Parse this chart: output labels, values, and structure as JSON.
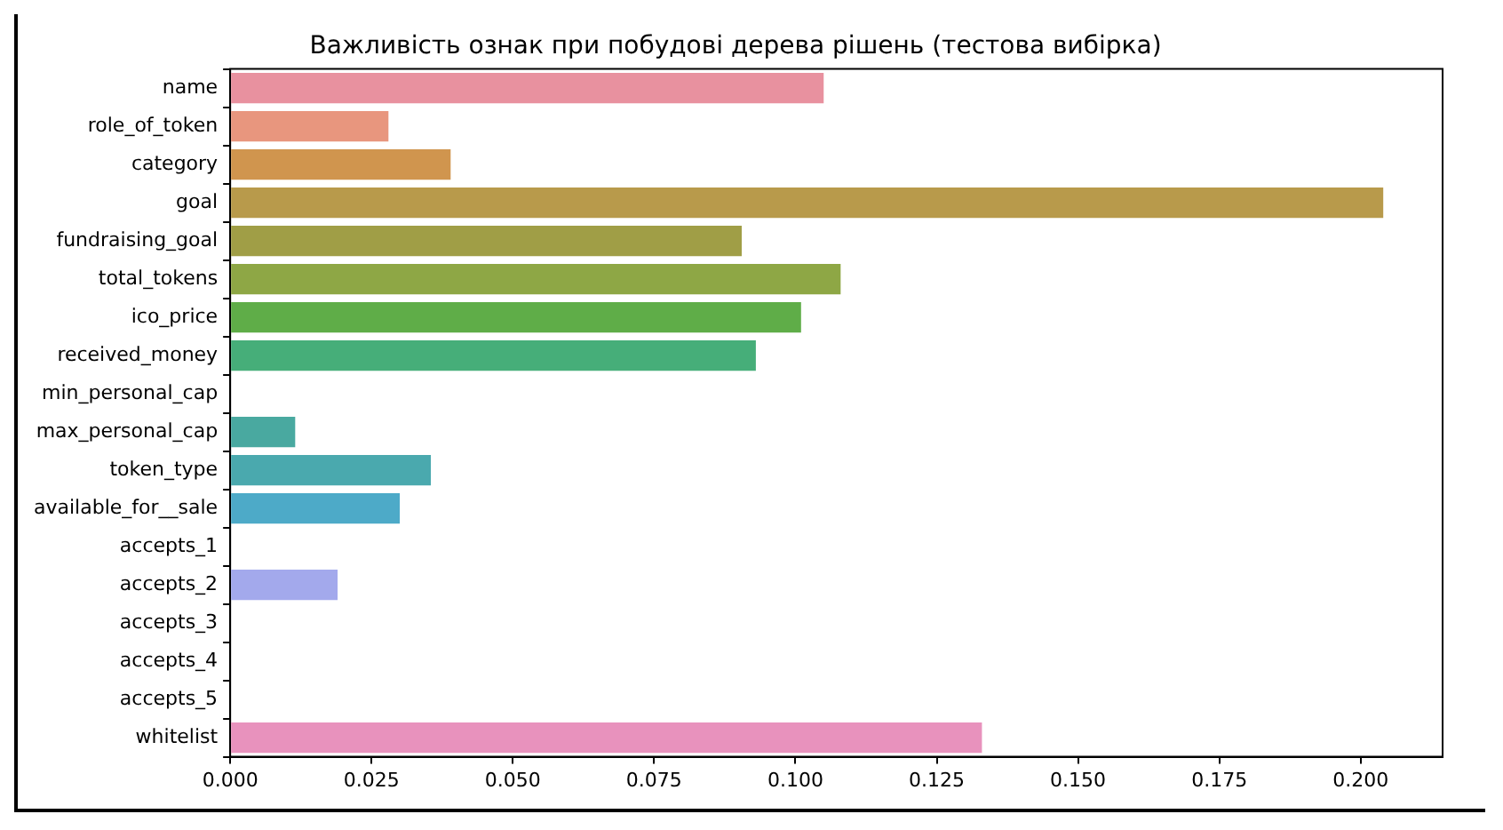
{
  "chart_data": {
    "type": "bar",
    "orientation": "horizontal",
    "title": "Важливість ознак при побудові дерева рішень (тестова вибірка)",
    "categories": [
      "name",
      "role_of_token",
      "category",
      "goal",
      "fundraising_goal",
      "total_tokens",
      "ico_price",
      "received_money",
      "min_personal_cap",
      "max_personal_cap",
      "token_type",
      "available_for__sale",
      "accepts_1",
      "accepts_2",
      "accepts_3",
      "accepts_4",
      "accepts_5",
      "whitelist"
    ],
    "values": [
      0.105,
      0.028,
      0.039,
      0.204,
      0.0905,
      0.108,
      0.101,
      0.093,
      0,
      0.0115,
      0.0355,
      0.03,
      0,
      0.019,
      0,
      0,
      0,
      0.133
    ],
    "colors": [
      "#e8919f",
      "#e8967e",
      "#d0954e",
      "#b89a4b",
      "#a09e46",
      "#8ea745",
      "#5fad48",
      "#46ae79",
      "#47aa95",
      "#49a9a0",
      "#4aa9ae",
      "#4daac8",
      "#7aaee6",
      "#a3a9ec",
      "#c39ee8",
      "#dc93e0",
      "#e78cce",
      "#e892bd"
    ],
    "xlim": [
      0,
      0.2145
    ],
    "xticks": [
      {
        "value": 0,
        "label": "0.000"
      },
      {
        "value": 0.025,
        "label": "0.025"
      },
      {
        "value": 0.05,
        "label": "0.050"
      },
      {
        "value": 0.075,
        "label": "0.075"
      },
      {
        "value": 0.1,
        "label": "0.100"
      },
      {
        "value": 0.125,
        "label": "0.125"
      },
      {
        "value": 0.15,
        "label": "0.150"
      },
      {
        "value": 0.175,
        "label": "0.175"
      },
      {
        "value": 0.2,
        "label": "0.200"
      }
    ],
    "grid": false,
    "legend": false
  }
}
